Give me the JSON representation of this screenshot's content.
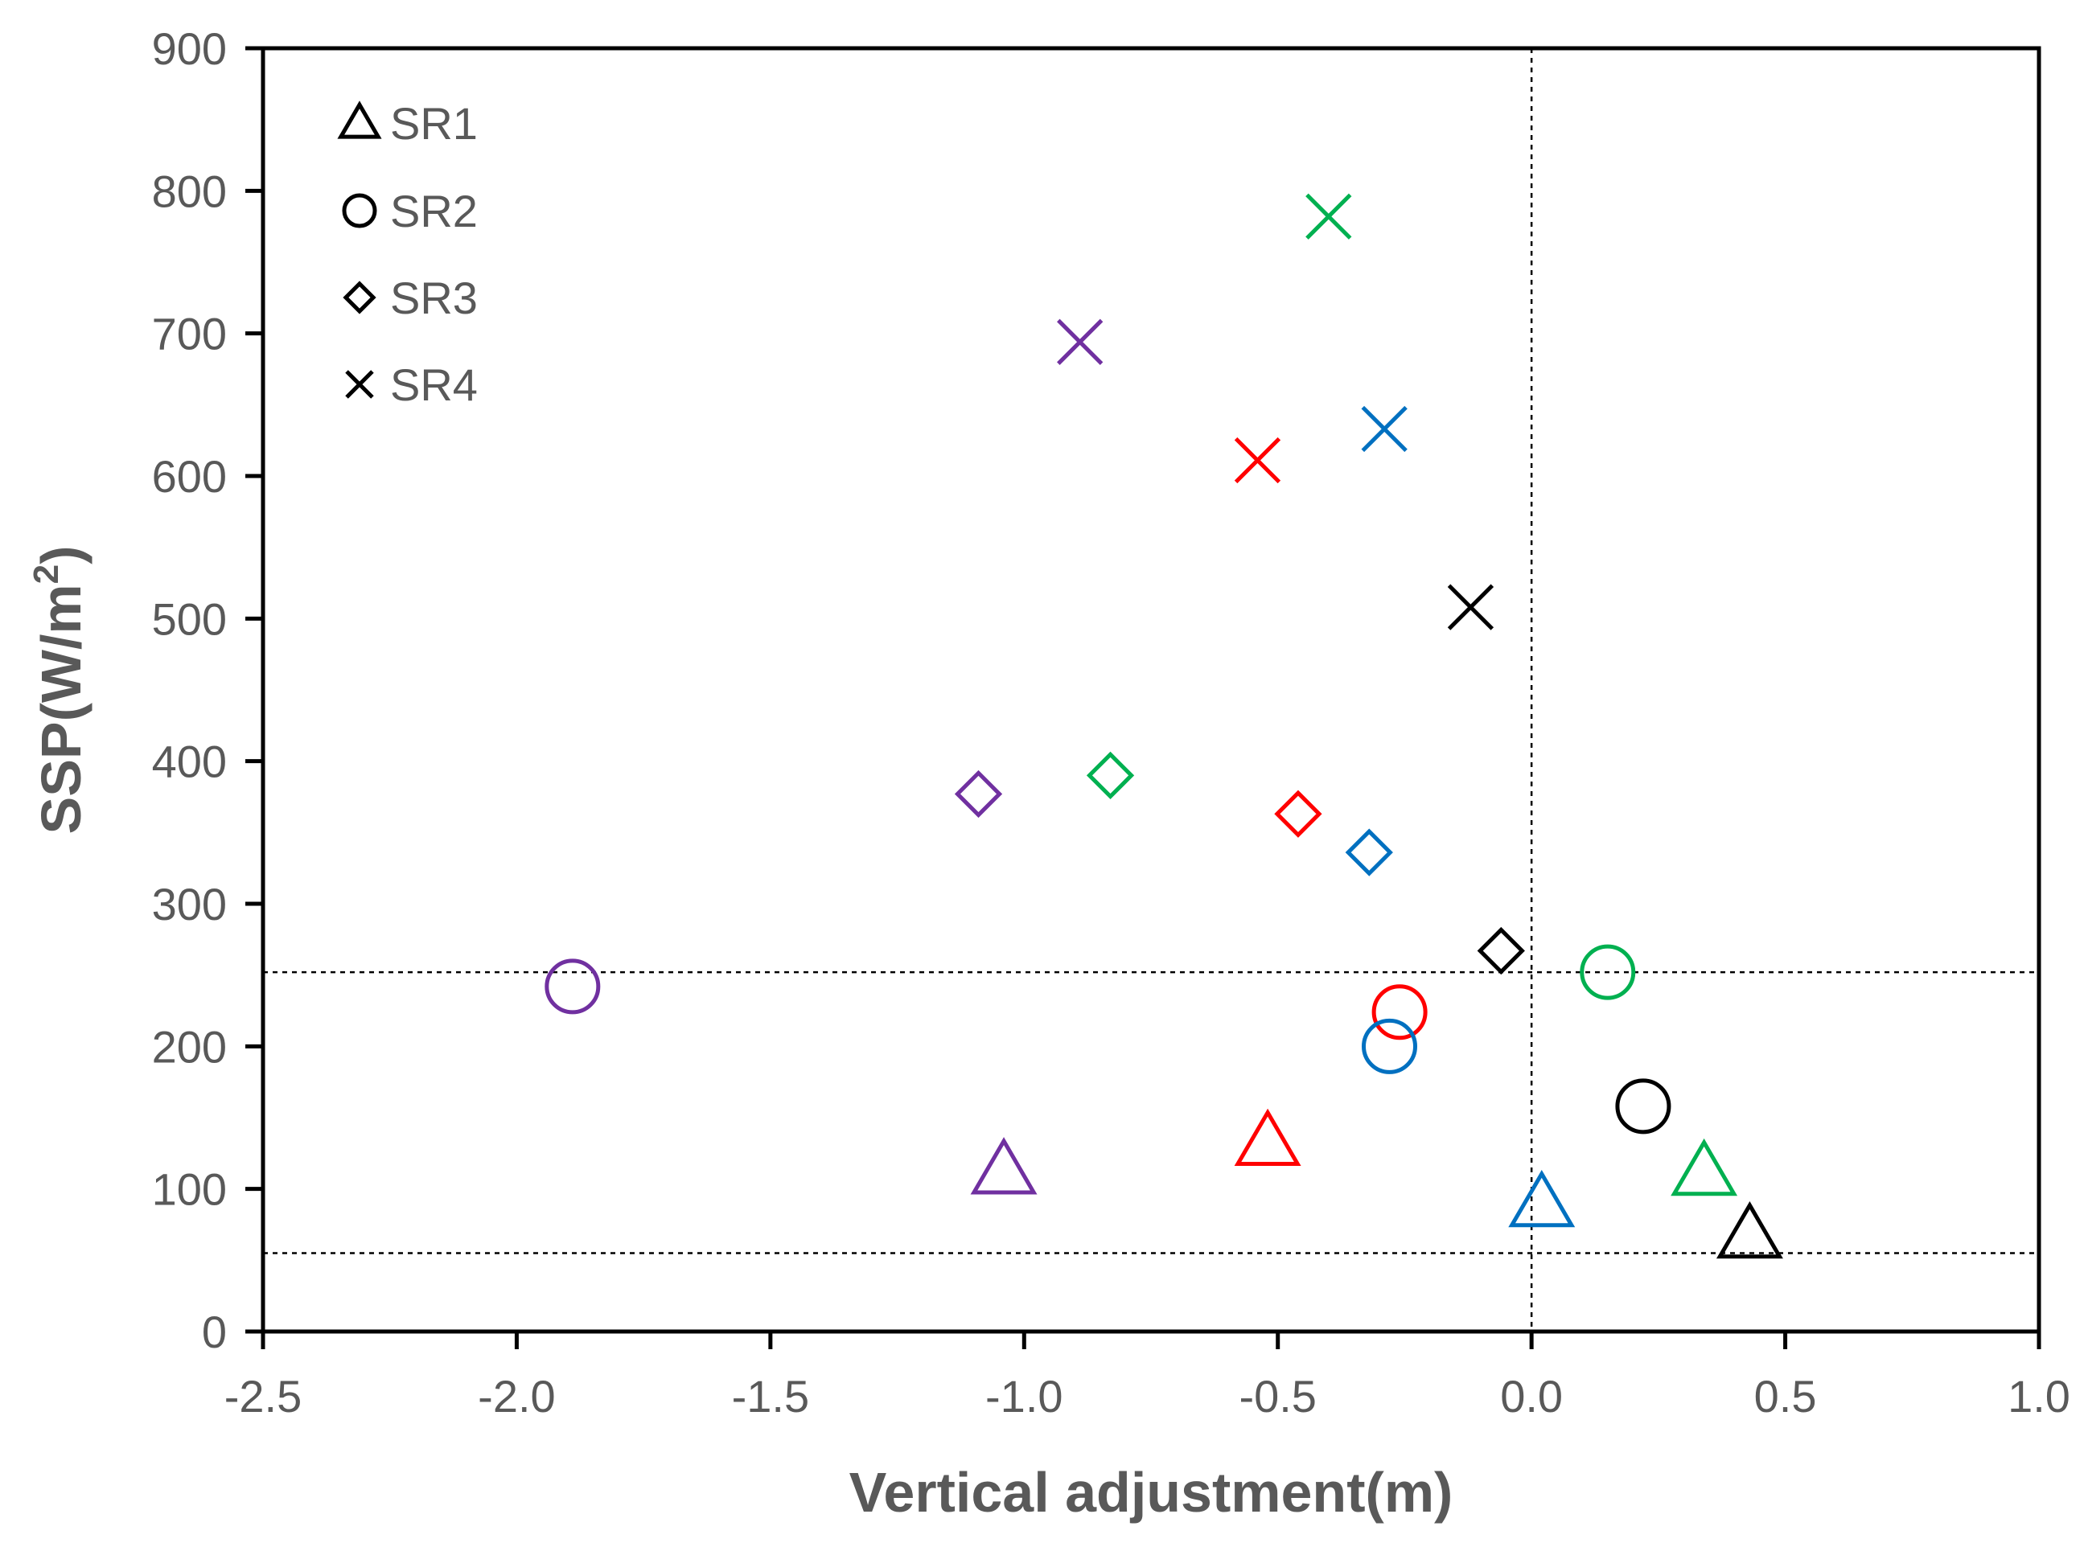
{
  "chart_data": {
    "type": "scatter",
    "title": "",
    "xlabel": "Vertical adjustment(m)",
    "ylabel_main": "SSP(W/m",
    "ylabel_sup": "2",
    "ylabel_close": ")",
    "xlim": [
      -2.5,
      1.0
    ],
    "ylim": [
      0,
      900
    ],
    "x_ticks": [
      -2.5,
      -2.0,
      -1.5,
      -1.0,
      -0.5,
      0.0,
      0.5,
      1.0
    ],
    "x_tick_labels": [
      "-2.5",
      "-2.0",
      "-1.5",
      "-1.0",
      "-0.5",
      "0.0",
      "0.5",
      "1.0"
    ],
    "y_ticks": [
      0,
      100,
      200,
      300,
      400,
      500,
      600,
      700,
      800,
      900
    ],
    "y_tick_labels": [
      "0",
      "100",
      "200",
      "300",
      "400",
      "500",
      "600",
      "700",
      "800",
      "900"
    ],
    "reference_lines": {
      "vertical_x": 0.0,
      "horizontal_y": [
        252,
        55
      ]
    },
    "legend_position": "top-left",
    "colors": {
      "black": "#000000",
      "green": "#00b050",
      "purple": "#7030a0",
      "blue": "#0070c0",
      "red": "#ff0000",
      "axis_text": "#595959"
    },
    "series": [
      {
        "name": "SR1",
        "marker": "triangle",
        "points": [
          {
            "x": -1.04,
            "y": 113,
            "color": "purple"
          },
          {
            "x": -0.52,
            "y": 133,
            "color": "red"
          },
          {
            "x": 0.02,
            "y": 90,
            "color": "blue"
          },
          {
            "x": 0.34,
            "y": 112,
            "color": "green"
          },
          {
            "x": 0.43,
            "y": 68,
            "color": "black"
          }
        ]
      },
      {
        "name": "SR2",
        "marker": "circle",
        "points": [
          {
            "x": -1.89,
            "y": 242,
            "color": "purple"
          },
          {
            "x": -0.26,
            "y": 224,
            "color": "red"
          },
          {
            "x": -0.28,
            "y": 200,
            "color": "blue"
          },
          {
            "x": 0.15,
            "y": 252,
            "color": "green"
          },
          {
            "x": 0.22,
            "y": 158,
            "color": "black"
          }
        ]
      },
      {
        "name": "SR3",
        "marker": "diamond",
        "points": [
          {
            "x": -1.09,
            "y": 377,
            "color": "purple"
          },
          {
            "x": -0.83,
            "y": 390,
            "color": "green"
          },
          {
            "x": -0.46,
            "y": 363,
            "color": "red"
          },
          {
            "x": -0.32,
            "y": 336,
            "color": "blue"
          },
          {
            "x": -0.06,
            "y": 267,
            "color": "black"
          }
        ]
      },
      {
        "name": "SR4",
        "marker": "x",
        "points": [
          {
            "x": -0.4,
            "y": 782,
            "color": "green"
          },
          {
            "x": -0.89,
            "y": 694,
            "color": "purple"
          },
          {
            "x": -0.29,
            "y": 633,
            "color": "blue"
          },
          {
            "x": -0.54,
            "y": 611,
            "color": "red"
          },
          {
            "x": -0.12,
            "y": 508,
            "color": "black"
          }
        ]
      }
    ]
  }
}
